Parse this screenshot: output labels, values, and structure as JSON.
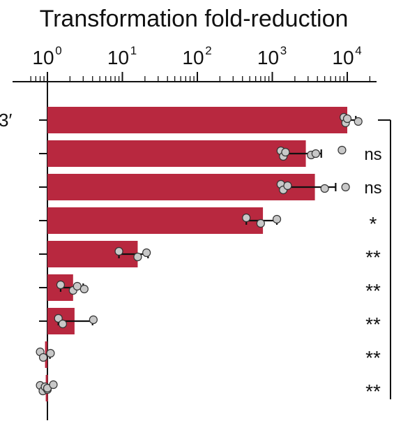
{
  "chart_data": {
    "type": "bar",
    "title": "Transformation fold-reduction",
    "xscale": "log",
    "xlim": [
      0.6,
      20000
    ],
    "x_ticks": [
      {
        "value": 1,
        "base": "10",
        "exp": "0"
      },
      {
        "value": 10,
        "base": "10",
        "exp": "1"
      },
      {
        "value": 100,
        "base": "10",
        "exp": "2"
      },
      {
        "value": 1000,
        "base": "10",
        "exp": "3"
      },
      {
        "value": 10000,
        "base": "10",
        "exp": "4"
      }
    ],
    "first_row_label": "3′",
    "bar_color": "#b8283f",
    "point_color": "#c8c8c8",
    "rows": [
      {
        "value": 10000,
        "err": [
          9000,
          13000
        ],
        "points": [
          9000,
          9500,
          10000,
          14000
        ],
        "sig": ""
      },
      {
        "value": 2800,
        "err": [
          1500,
          4500
        ],
        "points": [
          1300,
          1400,
          1500,
          3300,
          3800,
          8500
        ],
        "sig": "ns"
      },
      {
        "value": 3700,
        "err": [
          1500,
          7000
        ],
        "points": [
          1300,
          1400,
          1600,
          5000,
          9500
        ],
        "sig": "ns"
      },
      {
        "value": 750,
        "err": [
          450,
          1150
        ],
        "points": [
          450,
          700,
          1150
        ],
        "sig": "*"
      },
      {
        "value": 16,
        "err": [
          9,
          22
        ],
        "points": [
          9,
          16,
          21
        ],
        "sig": "**"
      },
      {
        "value": 2.2,
        "err": [
          1.5,
          3
        ],
        "points": [
          1.5,
          2.2,
          2.5,
          3.1
        ],
        "sig": "**"
      },
      {
        "value": 2.3,
        "err": [
          1.4,
          4
        ],
        "points": [
          1.4,
          1.6,
          4.1
        ],
        "sig": "**"
      },
      {
        "value": 0.93,
        "err": [
          0.8,
          1.08
        ],
        "points": [
          0.8,
          0.88,
          1.1
        ],
        "sig": "**"
      },
      {
        "value": 0.95,
        "err": [
          0.8,
          1.05
        ],
        "points": [
          0.8,
          0.87,
          0.93,
          1.0,
          1.0,
          1.2
        ],
        "sig": "**"
      }
    ]
  }
}
